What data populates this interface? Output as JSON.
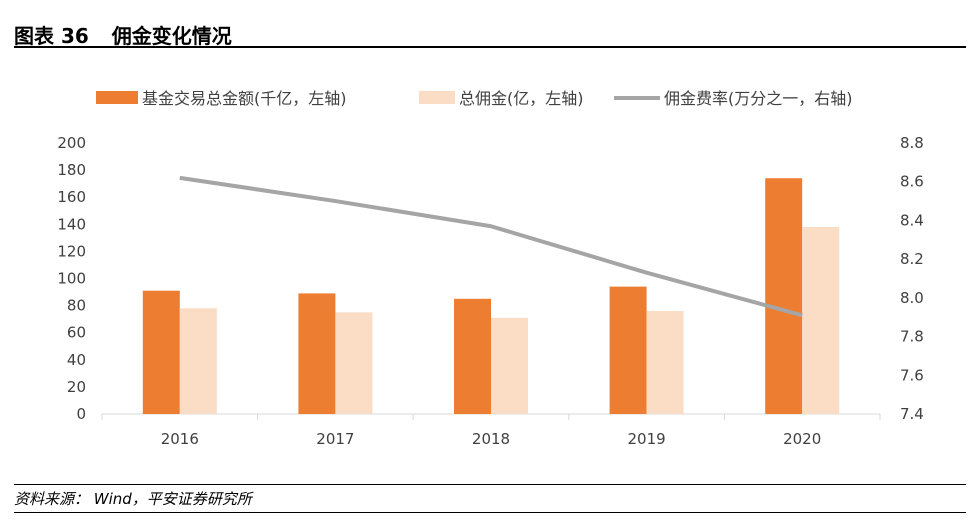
{
  "header": {
    "label": "图表 36",
    "title": "佣金变化情况"
  },
  "colors": {
    "bar1": "#ED7D31",
    "bar2": "#FBDCC4",
    "line": "#A5A5A5",
    "axis": "#D9D9D9",
    "text": "#404040"
  },
  "chart_data": {
    "type": "bar",
    "categories": [
      "2016",
      "2017",
      "2018",
      "2019",
      "2020"
    ],
    "series": [
      {
        "name": "基金交易总金额(千亿，左轴)",
        "type": "bar",
        "axis": "left",
        "values": [
          91,
          89,
          85,
          94,
          174
        ]
      },
      {
        "name": "总佣金(亿，左轴)",
        "type": "bar",
        "axis": "left",
        "values": [
          78,
          75,
          71,
          76,
          138
        ]
      },
      {
        "name": "佣金费率(万分之一，右轴)",
        "type": "line",
        "axis": "right",
        "values": [
          8.62,
          8.5,
          8.37,
          8.13,
          7.91
        ]
      }
    ],
    "ylim_left": [
      0,
      200
    ],
    "yticks_left": [
      "0",
      "20",
      "40",
      "60",
      "80",
      "100",
      "120",
      "140",
      "160",
      "180",
      "200"
    ],
    "ylim_right": [
      7.4,
      8.8
    ],
    "yticks_right": [
      "7.4",
      "7.6",
      "7.8",
      "8.0",
      "8.2",
      "8.4",
      "8.6",
      "8.8"
    ],
    "grid": false,
    "legend_position": "top"
  },
  "footer": {
    "source": "资料来源：  Wind，平安证券研究所"
  }
}
